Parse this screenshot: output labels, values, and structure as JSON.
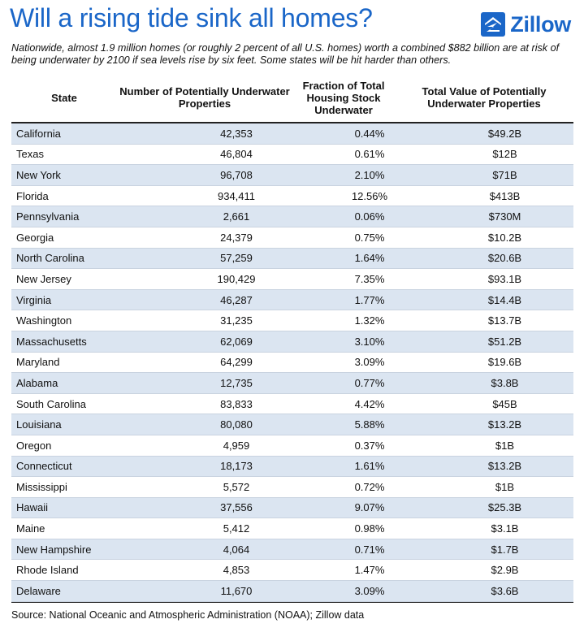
{
  "title": "Will a rising tide sink all homes?",
  "brand": "Zillow",
  "subtitle": "Nationwide, almost 1.9 million homes (or roughly 2 percent of all U.S. homes) worth a combined $882 billion are at risk of being underwater by 2100 if sea levels rise by six feet. Some states will be hit harder than others.",
  "source": "Source: National Oceanic and Atmospheric Administration (NOAA); Zillow data",
  "colors": {
    "accent": "#1a66c8",
    "row_alt": "#dbe5f1"
  },
  "chart_data": {
    "type": "table",
    "columns": [
      "State",
      "Number of Potentially Underwater Properties",
      "Fraction of Total Housing Stock Underwater",
      "Total Value of Potentially Underwater Properties"
    ],
    "rows": [
      [
        "California",
        "42,353",
        "0.44%",
        "$49.2B"
      ],
      [
        "Texas",
        "46,804",
        "0.61%",
        "$12B"
      ],
      [
        "New York",
        "96,708",
        "2.10%",
        "$71B"
      ],
      [
        "Florida",
        "934,411",
        "12.56%",
        "$413B"
      ],
      [
        "Pennsylvania",
        "2,661",
        "0.06%",
        "$730M"
      ],
      [
        "Georgia",
        "24,379",
        "0.75%",
        "$10.2B"
      ],
      [
        "North Carolina",
        "57,259",
        "1.64%",
        "$20.6B"
      ],
      [
        "New Jersey",
        "190,429",
        "7.35%",
        "$93.1B"
      ],
      [
        "Virginia",
        "46,287",
        "1.77%",
        "$14.4B"
      ],
      [
        "Washington",
        "31,235",
        "1.32%",
        "$13.7B"
      ],
      [
        "Massachusetts",
        "62,069",
        "3.10%",
        "$51.2B"
      ],
      [
        "Maryland",
        "64,299",
        "3.09%",
        "$19.6B"
      ],
      [
        "Alabama",
        "12,735",
        "0.77%",
        "$3.8B"
      ],
      [
        "South Carolina",
        "83,833",
        "4.42%",
        "$45B"
      ],
      [
        "Louisiana",
        "80,080",
        "5.88%",
        "$13.2B"
      ],
      [
        "Oregon",
        "4,959",
        "0.37%",
        "$1B"
      ],
      [
        "Connecticut",
        "18,173",
        "1.61%",
        "$13.2B"
      ],
      [
        "Mississippi",
        "5,572",
        "0.72%",
        "$1B"
      ],
      [
        "Hawaii",
        "37,556",
        "9.07%",
        "$25.3B"
      ],
      [
        "Maine",
        "5,412",
        "0.98%",
        "$3.1B"
      ],
      [
        "New Hampshire",
        "4,064",
        "0.71%",
        "$1.7B"
      ],
      [
        "Rhode Island",
        "4,853",
        "1.47%",
        "$2.9B"
      ],
      [
        "Delaware",
        "11,670",
        "3.09%",
        "$3.6B"
      ]
    ]
  }
}
